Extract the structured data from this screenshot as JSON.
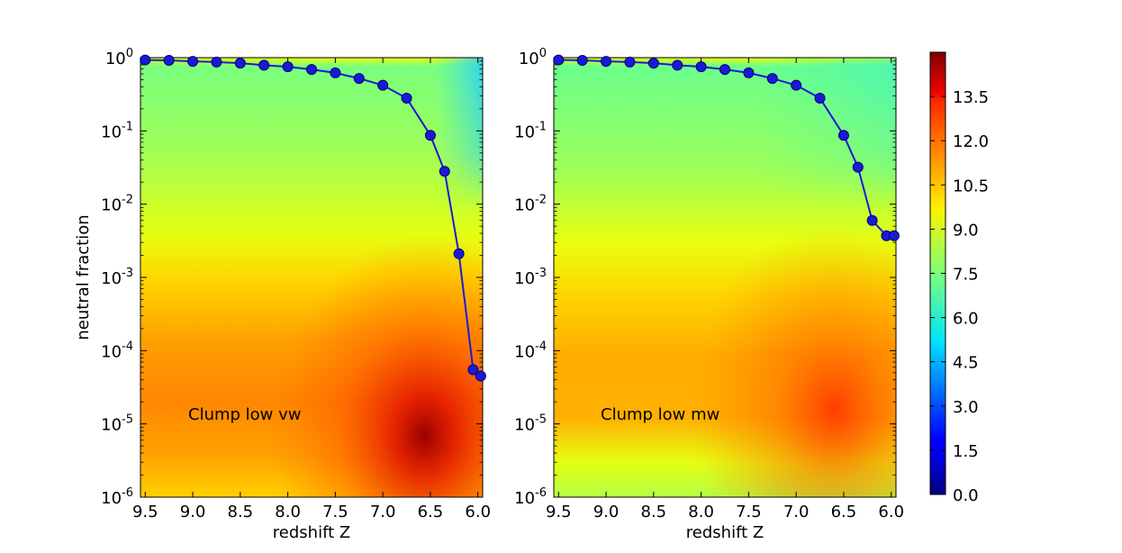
{
  "chart_data": [
    {
      "type": "heatmap",
      "xlabel": "redshift Z",
      "ylabel": "neutral fraction",
      "xlim": [
        9.55,
        5.95
      ],
      "ylim": [
        1e-06,
        1
      ],
      "yscale": "log",
      "annotation": "Clump low vw",
      "x_ticks": [
        9.5,
        9.0,
        8.5,
        8.0,
        7.5,
        7.0,
        6.5,
        6.0
      ],
      "x_tick_labels": [
        "9.5",
        "9.0",
        "8.5",
        "8.0",
        "7.5",
        "7.0",
        "6.5",
        "6.0"
      ],
      "y_ticks": [
        1e-06,
        1e-05,
        0.0001,
        0.001,
        0.01,
        0.1,
        1
      ],
      "y_tick_exponents": [
        "-6",
        "-5",
        "-4",
        "-3",
        "-2",
        "-1",
        "0"
      ],
      "y_tick_base": "10",
      "series": [
        {
          "x": [
            9.5,
            9.25,
            9.0,
            8.75,
            8.5,
            8.25,
            8.0,
            7.75,
            7.5,
            7.25,
            7.0,
            6.75,
            6.5,
            6.35,
            6.2,
            6.05,
            5.97
          ],
          "y": [
            0.93,
            0.92,
            0.89,
            0.87,
            0.84,
            0.79,
            0.75,
            0.69,
            0.62,
            0.52,
            0.42,
            0.28,
            0.087,
            0.028,
            0.0021,
            5.5e-05,
            4.5e-05
          ]
        }
      ],
      "color": "#1a1ad6"
    },
    {
      "type": "heatmap",
      "xlabel": "redshift Z",
      "ylabel": "",
      "xlim": [
        9.55,
        5.95
      ],
      "ylim": [
        1e-06,
        1
      ],
      "yscale": "log",
      "annotation": "Clump low mw",
      "x_ticks": [
        9.5,
        9.0,
        8.5,
        8.0,
        7.5,
        7.0,
        6.5,
        6.0
      ],
      "x_tick_labels": [
        "9.5",
        "9.0",
        "8.5",
        "8.0",
        "7.5",
        "7.0",
        "6.5",
        "6.0"
      ],
      "y_ticks": [
        1e-06,
        1e-05,
        0.0001,
        0.001,
        0.01,
        0.1,
        1
      ],
      "y_tick_exponents": [
        "-6",
        "-5",
        "-4",
        "-3",
        "-2",
        "-1",
        "0"
      ],
      "y_tick_base": "10",
      "series": [
        {
          "x": [
            9.5,
            9.25,
            9.0,
            8.75,
            8.5,
            8.25,
            8.0,
            7.75,
            7.5,
            7.25,
            7.0,
            6.75,
            6.5,
            6.35,
            6.2,
            6.05,
            5.97
          ],
          "y": [
            0.93,
            0.92,
            0.89,
            0.87,
            0.84,
            0.79,
            0.75,
            0.69,
            0.62,
            0.52,
            0.42,
            0.28,
            0.087,
            0.032,
            0.006,
            0.0037,
            0.0037
          ]
        }
      ],
      "color": "#1a1ad6"
    }
  ],
  "colorbar": {
    "range": [
      0,
      15
    ],
    "ticks": [
      0.0,
      1.5,
      3.0,
      4.5,
      6.0,
      7.5,
      9.0,
      10.5,
      12.0,
      13.5
    ],
    "tick_labels": [
      "0.0",
      "1.5",
      "3.0",
      "4.5",
      "6.0",
      "7.5",
      "9.0",
      "10.5",
      "12.0",
      "13.5"
    ],
    "colormap": "jet"
  }
}
